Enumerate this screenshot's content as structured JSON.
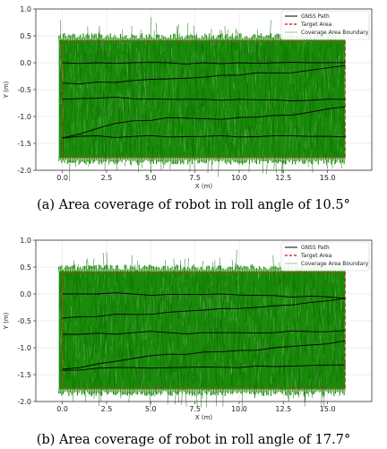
{
  "colors": {
    "fill": "#1a8a0a",
    "fill_dark": "#0e6b00",
    "gnss_path": "#000000",
    "target": "#e0302a",
    "boundary": "#9acd8a",
    "grid": "#e6e6e6"
  },
  "chart_data": [
    {
      "type": "line",
      "caption": "(a) Area coverage of robot in roll angle of 10.5°",
      "xlabel": "X (m)",
      "ylabel": "Y (m)",
      "xlim": [
        -1.5,
        17.5
      ],
      "ylim": [
        -2.0,
        1.0
      ],
      "x_ticks": [
        0.0,
        2.5,
        5.0,
        7.5,
        10.0,
        12.5,
        15.0
      ],
      "y_ticks": [
        1.0,
        0.5,
        0.0,
        -0.5,
        -1.0,
        -1.5,
        -2.0
      ],
      "grid": true,
      "legend": {
        "position": "top-right",
        "entries": [
          "GNSS Path",
          "Target Area",
          "Coverage Area Boundary"
        ]
      },
      "target_area": {
        "x": [
          0.0,
          16.0
        ],
        "y": [
          -1.75,
          0.4
        ]
      },
      "coverage_area": {
        "x": [
          -0.2,
          16.0
        ],
        "y": [
          -1.8,
          0.45
        ]
      },
      "series": [
        {
          "x": [
            0,
            2,
            4,
            6,
            8,
            10,
            12,
            14,
            16
          ],
          "y": [
            0.0,
            0.0,
            0.0,
            0.0,
            0.0,
            0.0,
            0.0,
            0.0,
            0.0
          ]
        },
        {
          "x": [
            0,
            2,
            4,
            6,
            8,
            10,
            12,
            14,
            16
          ],
          "y": [
            -0.38,
            -0.36,
            -0.33,
            -0.3,
            -0.27,
            -0.23,
            -0.19,
            -0.14,
            -0.05
          ]
        },
        {
          "x": [
            0,
            2,
            4,
            6,
            8,
            10,
            12,
            14,
            16
          ],
          "y": [
            -0.68,
            -0.66,
            -0.67,
            -0.68,
            -0.68,
            -0.68,
            -0.69,
            -0.7,
            -0.68
          ]
        },
        {
          "x": [
            0,
            2,
            4,
            6,
            8,
            10,
            12,
            14,
            16
          ],
          "y": [
            -1.4,
            -1.22,
            -1.08,
            -1.02,
            -1.04,
            -1.02,
            -0.98,
            -0.92,
            -0.82
          ]
        },
        {
          "x": [
            0,
            2,
            4,
            6,
            8,
            10,
            12,
            14,
            16
          ],
          "y": [
            -1.4,
            -1.36,
            -1.37,
            -1.38,
            -1.37,
            -1.38,
            -1.36,
            -1.37,
            -1.38
          ]
        }
      ]
    },
    {
      "type": "line",
      "caption": "(b) Area coverage of robot in roll angle of 17.7°",
      "xlabel": "X (m)",
      "ylabel": "Y (m)",
      "xlim": [
        -1.5,
        17.5
      ],
      "ylim": [
        -2.0,
        1.0
      ],
      "x_ticks": [
        0.0,
        2.5,
        5.0,
        7.5,
        10.0,
        12.5,
        15.0
      ],
      "y_ticks": [
        1.0,
        0.5,
        0.0,
        -0.5,
        -1.0,
        -1.5,
        -2.0
      ],
      "grid": true,
      "legend": {
        "position": "top-right",
        "entries": [
          "GNSS Path",
          "Target Area",
          "Coverage Area Boundary"
        ]
      },
      "target_area": {
        "x": [
          0.0,
          16.0
        ],
        "y": [
          -1.75,
          0.4
        ]
      },
      "coverage_area": {
        "x": [
          -0.2,
          16.0
        ],
        "y": [
          -1.8,
          0.45
        ]
      },
      "series": [
        {
          "x": [
            0,
            2,
            4,
            6,
            8,
            10,
            12,
            14,
            16
          ],
          "y": [
            0.0,
            0.0,
            0.0,
            -0.01,
            -0.01,
            -0.02,
            -0.03,
            -0.04,
            -0.08
          ]
        },
        {
          "x": [
            0,
            2,
            4,
            6,
            8,
            10,
            12,
            14,
            16
          ],
          "y": [
            -0.45,
            -0.42,
            -0.38,
            -0.34,
            -0.3,
            -0.27,
            -0.22,
            -0.16,
            -0.08
          ]
        },
        {
          "x": [
            0,
            2,
            4,
            6,
            8,
            10,
            12,
            14,
            16
          ],
          "y": [
            -0.75,
            -0.73,
            -0.72,
            -0.72,
            -0.72,
            -0.72,
            -0.72,
            -0.7,
            -0.68
          ]
        },
        {
          "x": [
            0,
            2,
            4,
            6,
            8,
            10,
            12,
            14,
            16
          ],
          "y": [
            -1.4,
            -1.3,
            -1.2,
            -1.12,
            -1.08,
            -1.05,
            -1.0,
            -0.95,
            -0.87
          ]
        },
        {
          "x": [
            0,
            2,
            4,
            6,
            8,
            10,
            12,
            14,
            16
          ],
          "y": [
            -1.42,
            -1.38,
            -1.37,
            -1.37,
            -1.36,
            -1.37,
            -1.35,
            -1.33,
            -1.32
          ]
        }
      ]
    }
  ]
}
